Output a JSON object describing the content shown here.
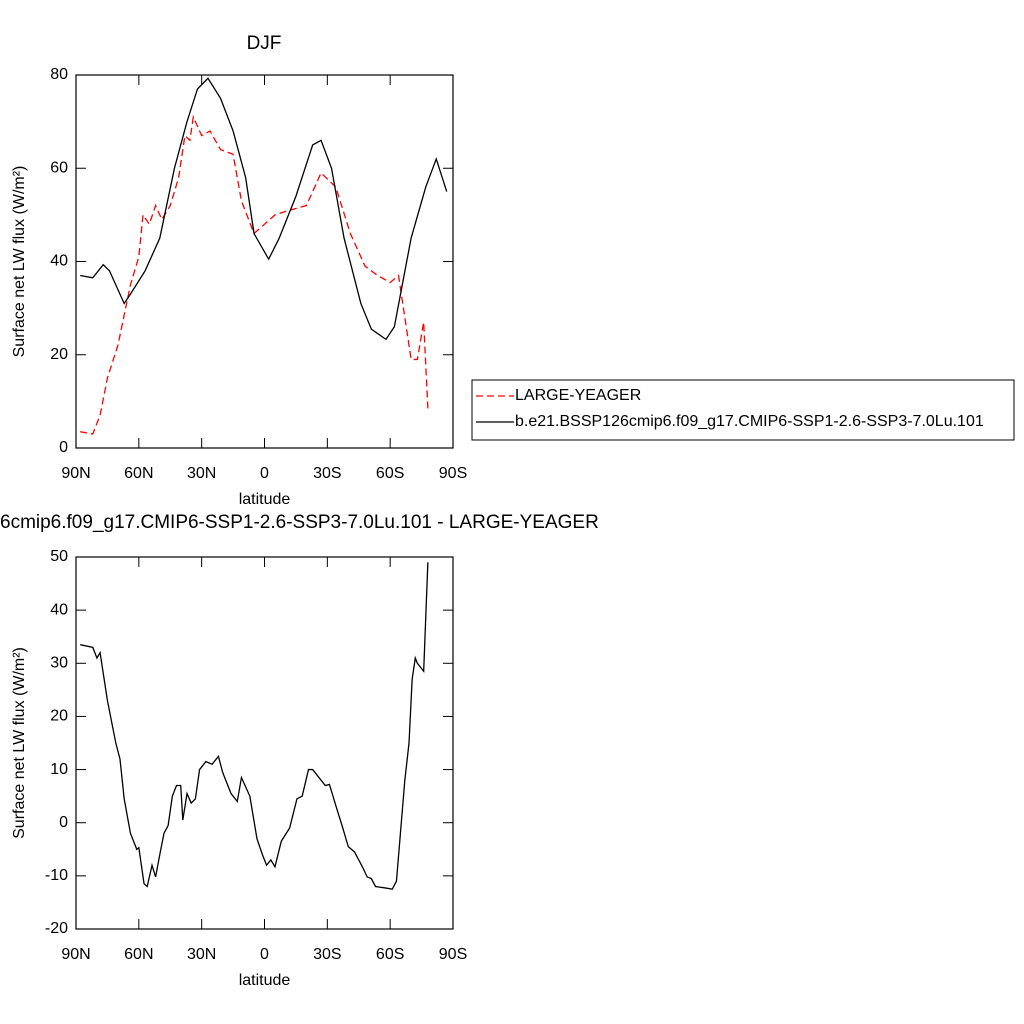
{
  "chart_data": [
    {
      "type": "line",
      "title": "DJF",
      "xlabel": "latitude",
      "ylabel": "Surface net LW flux (W/m²)",
      "xlim": [
        90,
        -90
      ],
      "xticks": [
        {
          "value": 90,
          "label": "90N"
        },
        {
          "value": 60,
          "label": "60N"
        },
        {
          "value": 30,
          "label": "30N"
        },
        0,
        {
          "value": -30,
          "label": "30S"
        },
        {
          "value": -60,
          "label": "60S"
        },
        {
          "value": -90,
          "label": "90S"
        }
      ],
      "ylim": [
        0,
        80
      ],
      "yticks": [
        0,
        20,
        40,
        60,
        80
      ],
      "legend": "right",
      "series": [
        {
          "name": "LARGE-YEAGER",
          "color": "#ff0000",
          "dashed": true,
          "x": [
            88,
            82,
            78.5,
            75,
            70,
            64,
            60,
            58,
            55,
            52,
            49,
            45,
            41,
            38,
            35.6,
            34,
            30,
            26,
            21,
            15,
            11,
            5,
            0,
            -5,
            -12,
            -20,
            -27,
            -34,
            -41,
            -48,
            -54,
            -60,
            -64,
            -67,
            -70,
            -73,
            -76,
            -78
          ],
          "values": [
            3.5,
            3,
            7,
            15,
            22,
            35,
            41,
            50,
            48,
            52,
            49,
            52,
            58,
            67,
            66,
            71,
            67,
            68,
            64,
            63,
            53,
            46,
            48,
            50,
            51,
            52,
            59,
            56,
            46,
            39,
            37,
            35.5,
            37,
            28,
            19,
            19,
            27,
            8.5
          ]
        },
        {
          "name": "b.e21.BSSP126cmip6.f09_g17.CMIP6-SSP1-2.6-SSP3-7.0Lu.101",
          "color": "#000000",
          "dashed": false,
          "x": [
            88,
            82,
            77,
            74,
            67,
            64,
            57,
            50,
            43,
            37,
            32,
            27,
            21,
            15,
            9,
            5,
            -2,
            -7,
            -15,
            -23,
            -27,
            -32,
            -38,
            -46,
            -51,
            -58,
            -62,
            -70,
            -77,
            -82,
            -87
          ],
          "values": [
            37,
            36.5,
            39.3,
            38,
            31,
            33,
            38,
            45,
            60,
            70,
            77,
            79.3,
            75,
            68,
            58,
            46,
            40.5,
            45,
            54,
            65,
            66,
            60,
            45,
            31,
            25.5,
            23.3,
            26,
            45,
            56,
            62,
            55
          ]
        }
      ]
    },
    {
      "type": "line",
      "title": "6cmip6.f09_g17.CMIP6-SSP1-2.6-SSP3-7.0Lu.101 - LARGE-YEAGER",
      "xlabel": "latitude",
      "ylabel": "Surface net LW flux (W/m²)",
      "xlim": [
        90,
        -90
      ],
      "xticks": [
        {
          "value": 90,
          "label": "90N"
        },
        {
          "value": 60,
          "label": "60N"
        },
        {
          "value": 30,
          "label": "30N"
        },
        0,
        {
          "value": -30,
          "label": "30S"
        },
        {
          "value": -60,
          "label": "60S"
        },
        {
          "value": -90,
          "label": "90S"
        }
      ],
      "ylim": [
        -20,
        50
      ],
      "yticks": [
        -20,
        -10,
        0,
        10,
        20,
        30,
        40,
        50
      ],
      "series": [
        {
          "color": "#000000",
          "dashed": false,
          "x": [
            88,
            82,
            80,
            78.5,
            75,
            71,
            69,
            67,
            64,
            61,
            60,
            57.5,
            56,
            53.7,
            52,
            50,
            48,
            46,
            44,
            42,
            40,
            39,
            37,
            35,
            33,
            31,
            28,
            25,
            22,
            20,
            16,
            13,
            11,
            7,
            3.6,
            1,
            -1,
            -3,
            -5,
            -8,
            -12,
            -15.5,
            -18,
            -21,
            -23,
            -27,
            -29,
            -31,
            -35,
            -37,
            -40,
            -43,
            -47,
            -49,
            -51,
            -53,
            -58,
            -61,
            -63,
            -67,
            -69,
            -70.5,
            -72,
            -73,
            -76,
            -78
          ],
          "values": [
            33.5,
            33,
            31,
            32,
            23,
            15,
            12,
            4.5,
            -2,
            -5,
            -4.7,
            -11.5,
            -12,
            -8,
            -10.2,
            -6,
            -2,
            -0.5,
            5,
            7,
            7,
            0.5,
            5.5,
            3.7,
            4.5,
            10,
            11.5,
            11,
            12.5,
            9.5,
            5.5,
            4,
            8.5,
            5,
            -3,
            -6,
            -8,
            -7,
            -8.3,
            -3.5,
            -1,
            4.5,
            5,
            10,
            10,
            8,
            7,
            7.2,
            2,
            -0.5,
            -4.5,
            -5.5,
            -8.5,
            -10.2,
            -10.5,
            -12,
            -12.3,
            -12.5,
            -11,
            8,
            15,
            27,
            31,
            30,
            28.5,
            49
          ]
        }
      ]
    }
  ]
}
